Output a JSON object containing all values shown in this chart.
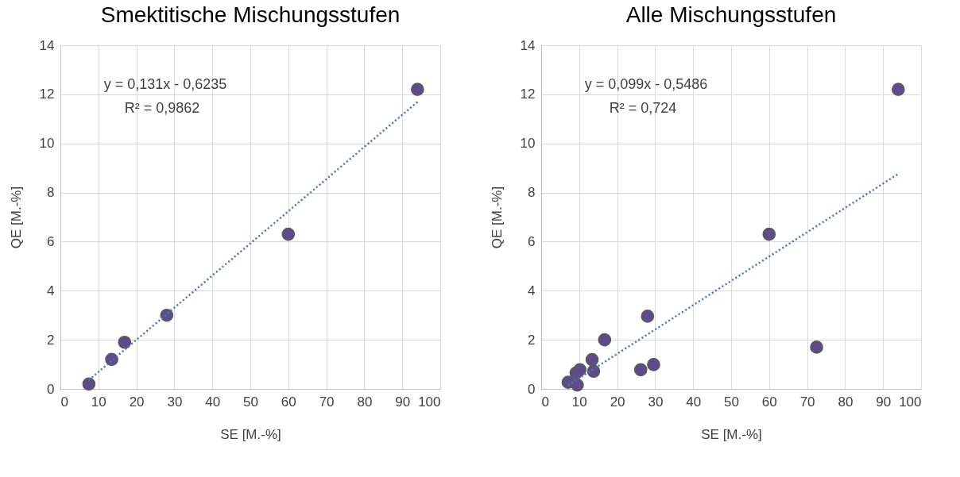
{
  "chart_data": [
    {
      "type": "scatter",
      "title": "Smektitische Mischungsstufen",
      "xlabel": "SE [M.-%]",
      "ylabel": "QE [M.-%]",
      "xlim": [
        0,
        100
      ],
      "xticks": [
        0,
        10,
        20,
        30,
        40,
        50,
        60,
        70,
        80,
        90,
        100
      ],
      "ylim": [
        0,
        14
      ],
      "yticks": [
        0,
        2,
        4,
        6,
        8,
        10,
        12,
        14
      ],
      "grid": true,
      "marker": "circle",
      "series": [
        {
          "color": "#5f4b8b",
          "x": [
            7.5,
            13.5,
            16.9,
            28,
            60,
            94
          ],
          "values": [
            0.2,
            1.2,
            1.9,
            3.0,
            6.3,
            12.2
          ]
        },
        {
          "type": "line",
          "color": "#4472c4",
          "line_style": "dotted",
          "marker": "none",
          "x": [
            7.5,
            94
          ],
          "values": [
            0.36,
            11.69
          ]
        }
      ],
      "annotations": [
        "y = 0,131x - 0,6235",
        "R² = 0,9862"
      ]
    },
    {
      "type": "scatter",
      "title": "Alle Mischungsstufen",
      "xlabel": "SE [M.-%]",
      "ylabel": "QE [M.-%]",
      "xlim": [
        0,
        100
      ],
      "xticks": [
        0,
        10,
        20,
        30,
        40,
        50,
        60,
        70,
        80,
        90,
        100
      ],
      "ylim": [
        0,
        14
      ],
      "yticks": [
        0,
        2,
        4,
        6,
        8,
        10,
        12,
        14
      ],
      "grid": true,
      "marker": "circle",
      "series": [
        {
          "color": "#5f4b8b",
          "x": [
            7.1,
            9.5,
            9.2,
            10.2,
            13.4,
            13.8,
            16.7,
            26.2,
            28,
            29.6,
            60,
            72.5,
            94
          ],
          "values": [
            0.27,
            0.16,
            0.65,
            0.78,
            1.19,
            0.72,
            2.0,
            0.78,
            2.96,
            0.99,
            6.3,
            1.7,
            12.2
          ]
        },
        {
          "type": "line",
          "color": "#4472c4",
          "line_style": "dotted",
          "marker": "none",
          "x": [
            7.1,
            94
          ],
          "values": [
            0.15,
            8.76
          ]
        }
      ],
      "annotations": [
        "y = 0,099x - 0,5486",
        "R² = 0,724"
      ]
    }
  ]
}
